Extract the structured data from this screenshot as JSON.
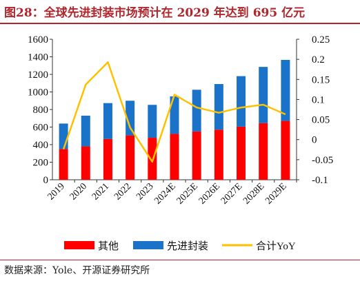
{
  "header": {
    "title": "图28：全球先进封装市场预计在 2029 年达到 695 亿元"
  },
  "footer": {
    "source": "数据来源：Yole、开源证券研究所"
  },
  "colors": {
    "accent": "#b0262c",
    "other": "#ff0000",
    "advanced": "#1a73c8",
    "yoy": "#ffc000"
  },
  "chart_data": {
    "type": "bar",
    "stacked": true,
    "categories": [
      "2019",
      "2020",
      "2021",
      "2022",
      "2023",
      "2024E",
      "2025E",
      "2026E",
      "2027E",
      "2028E",
      "2029E"
    ],
    "series": [
      {
        "name": "其他",
        "axis": "left",
        "color": "#ff0000",
        "values": [
          350,
          380,
          465,
          505,
          478,
          522,
          550,
          570,
          605,
          645,
          670
        ]
      },
      {
        "name": "先进封装",
        "axis": "left",
        "color": "#1a73c8",
        "values": [
          290,
          350,
          408,
          395,
          375,
          428,
          475,
          520,
          575,
          640,
          695
        ]
      },
      {
        "name": "合计YoY",
        "axis": "right",
        "type": "line",
        "color": "#ffc000",
        "values": [
          -0.024,
          0.137,
          0.193,
          0.03,
          -0.055,
          0.112,
          0.08,
          0.067,
          0.08,
          0.087,
          0.063
        ]
      }
    ],
    "left_axis": {
      "min": 0,
      "max": 1600,
      "step": 200,
      "ticks": [
        "0",
        "200",
        "400",
        "600",
        "800",
        "1000",
        "1200",
        "1400",
        "1600"
      ]
    },
    "right_axis": {
      "min": -0.1,
      "max": 0.25,
      "step": 0.05,
      "ticks": [
        "-0.1",
        "-0.05",
        "0",
        "0.05",
        "0.1",
        "0.15",
        "0.2",
        "0.25"
      ]
    },
    "legend_position": "bottom",
    "grid": false
  }
}
